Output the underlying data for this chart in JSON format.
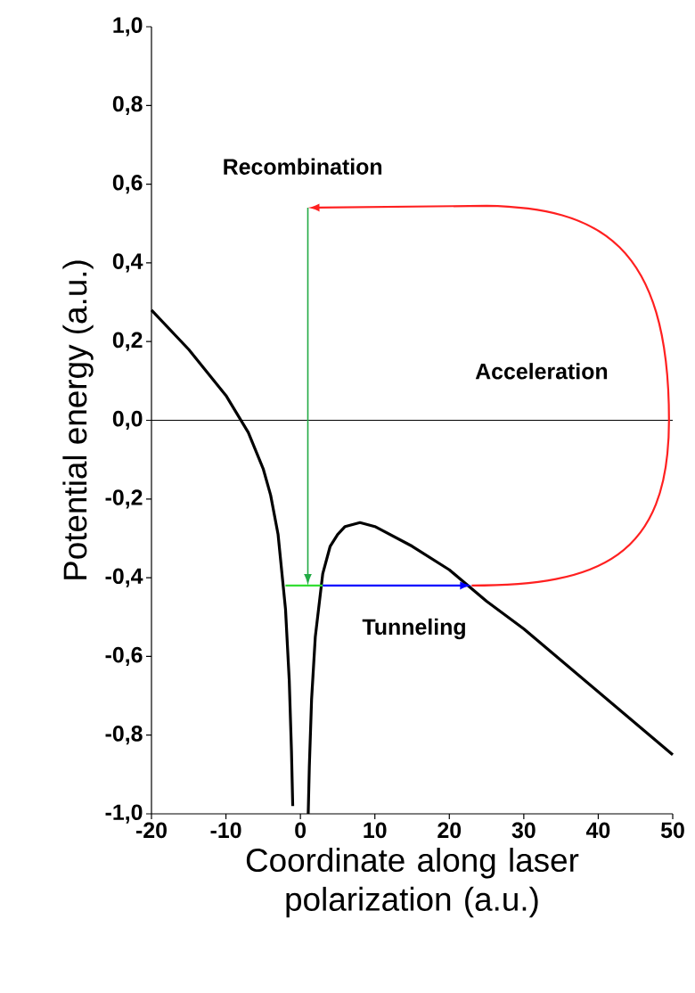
{
  "chart_data": {
    "type": "line",
    "xlabel": "Coordinate along laser polarization (a.u.)",
    "ylabel": "Potential energy (a.u.)",
    "xlim": [
      -20,
      50
    ],
    "xticks": [
      -20,
      -10,
      0,
      10,
      20,
      30,
      40,
      50
    ],
    "ylim": [
      -1.0,
      1.0
    ],
    "yticks": [
      {
        "value": -1.0,
        "label": "-1,0"
      },
      {
        "value": -0.8,
        "label": "-0,8"
      },
      {
        "value": -0.6,
        "label": "-0,6"
      },
      {
        "value": -0.4,
        "label": "-0,4"
      },
      {
        "value": -0.2,
        "label": "-0,2"
      },
      {
        "value": 0.0,
        "label": "0,0"
      },
      {
        "value": 0.2,
        "label": "0,2"
      },
      {
        "value": 0.4,
        "label": "0,4"
      },
      {
        "value": 0.6,
        "label": "0,6"
      },
      {
        "value": 0.8,
        "label": "0,8"
      },
      {
        "value": 1.0,
        "label": "1,0"
      }
    ],
    "ref_lines": [
      {
        "axis": "y",
        "value": 0,
        "color": "#000000"
      }
    ],
    "series": [
      {
        "color": "#000000",
        "x": [
          -20,
          -15,
          -10,
          -7,
          -5,
          -4,
          -3,
          -2,
          -1.5,
          -1.2,
          -1.03,
          0,
          1.05,
          1.2,
          1.5,
          2,
          3,
          4,
          5,
          6,
          8,
          10,
          15,
          20,
          25,
          30,
          35,
          40,
          45,
          50
        ],
        "values": [
          0.28,
          0.18,
          0.063,
          -0.031,
          -0.123,
          -0.19,
          -0.29,
          -0.48,
          -0.66,
          -0.84,
          -0.98,
          null,
          -1.0,
          -0.88,
          -0.71,
          -0.55,
          -0.39,
          -0.32,
          -0.29,
          -0.27,
          -0.26,
          -0.27,
          -0.32,
          -0.38,
          -0.46,
          -0.53,
          -0.61,
          -0.69,
          -0.77,
          -0.85
        ]
      },
      {
        "color": "#33dd33",
        "x": [
          -2,
          3
        ],
        "values": [
          -0.42,
          -0.42
        ]
      }
    ],
    "annotations": [
      "Recombination",
      "Acceleration",
      "Tunneling"
    ]
  }
}
